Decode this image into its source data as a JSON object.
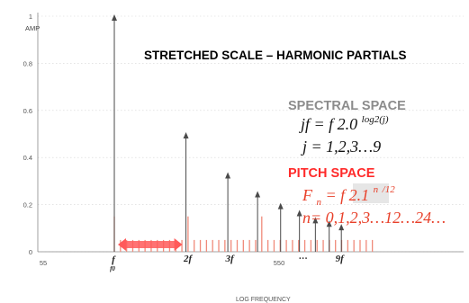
{
  "chart_data": {
    "type": "bar",
    "title": "STRETCHED SCALE – HARMONIC PARTIALS",
    "ylabel": "AMP",
    "xlabel": "LOG FREQUENCY",
    "ylim": [
      0,
      1
    ],
    "x_scale": "log",
    "y_ticks": [
      "0",
      "0.2",
      "0.4",
      "0.6",
      "0.8",
      "1"
    ],
    "x_tick_labels": [
      "55",
      "550"
    ],
    "x_markers": [
      "f",
      "f0",
      "2f",
      "3f",
      "…",
      "9f"
    ],
    "series": [
      {
        "style": "arrow",
        "color": "#4a4a4a",
        "values": [
          {
            "partial": 1,
            "amp": 1.0
          },
          {
            "partial": 2,
            "amp": 0.5
          },
          {
            "partial": 3,
            "amp": 0.33
          },
          {
            "partial": 4,
            "amp": 0.25
          },
          {
            "partial": 5,
            "amp": 0.2
          },
          {
            "partial": 6,
            "amp": 0.17
          },
          {
            "partial": 7,
            "amp": 0.14
          },
          {
            "partial": 8,
            "amp": 0.125
          },
          {
            "partial": 9,
            "amp": 0.11
          }
        ]
      },
      {
        "style": "line",
        "color": "#f08a7a",
        "steps": 43,
        "amp": 0.05,
        "tall_steps": [
          0,
          12,
          24
        ],
        "tall_amp": 0.15
      }
    ],
    "annotations": {
      "spectral": {
        "heading": "SPECTRAL SPACE",
        "line1_main": "jf = f 2.0",
        "line1_sup": "log2(j)",
        "line2": "j  = 1,2,3…9"
      },
      "pitch": {
        "heading": "PITCH SPACE",
        "line1_main": "F",
        "line1_sub": "n",
        "line1_rest": "= f 2.1",
        "line1_sup": "n",
        "line1_sup_rest": "/12",
        "line2": "n= 0,1,2,3…12…24…"
      }
    },
    "colors": {
      "axis": "#888888",
      "arrow": "#4a4a4a",
      "pitch": "#f08a7a",
      "heading_red": "#ff2a2a",
      "heading_gray": "#8c8c8c",
      "formula_red": "#e8402a",
      "range_fill": "#ff5a5a"
    }
  }
}
